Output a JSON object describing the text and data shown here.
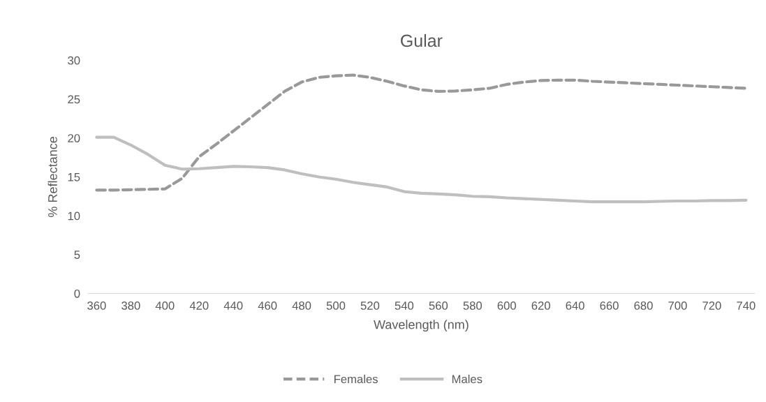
{
  "chart_data": {
    "type": "line",
    "title": "Gular",
    "xlabel": "Wavelength (nm)",
    "ylabel": "% Reflectance",
    "x": [
      360,
      370,
      380,
      390,
      400,
      410,
      420,
      430,
      440,
      450,
      460,
      470,
      480,
      490,
      500,
      510,
      520,
      530,
      540,
      550,
      560,
      570,
      580,
      590,
      600,
      610,
      620,
      630,
      640,
      650,
      660,
      670,
      680,
      690,
      700,
      710,
      720,
      730,
      740
    ],
    "xlim": [
      355,
      745
    ],
    "xticks": [
      360,
      380,
      400,
      420,
      440,
      460,
      480,
      500,
      520,
      540,
      560,
      580,
      600,
      620,
      640,
      660,
      680,
      700,
      720,
      740
    ],
    "ylim": [
      0,
      30
    ],
    "yticks": [
      0,
      5,
      10,
      15,
      20,
      25,
      30
    ],
    "grid": false,
    "legend": "bottom",
    "marker": "none",
    "series": [
      {
        "name": "Females",
        "color": "#999999",
        "line_style": "dashed",
        "values": [
          13.3,
          13.3,
          13.35,
          13.4,
          13.45,
          14.8,
          17.6,
          19.2,
          20.9,
          22.6,
          24.3,
          26.0,
          27.2,
          27.8,
          28.0,
          28.1,
          27.8,
          27.3,
          26.7,
          26.2,
          26.0,
          26.05,
          26.2,
          26.4,
          26.9,
          27.2,
          27.4,
          27.45,
          27.45,
          27.3,
          27.2,
          27.1,
          27.0,
          26.9,
          26.8,
          26.7,
          26.6,
          26.5,
          26.4
        ]
      },
      {
        "name": "Males",
        "color": "#bfbfbf",
        "line_style": "solid",
        "values": [
          20.1,
          20.1,
          19.1,
          17.9,
          16.5,
          16.0,
          16.05,
          16.2,
          16.35,
          16.3,
          16.2,
          15.9,
          15.4,
          15.0,
          14.7,
          14.3,
          14.0,
          13.7,
          13.1,
          12.9,
          12.8,
          12.7,
          12.5,
          12.45,
          12.3,
          12.2,
          12.1,
          12.0,
          11.9,
          11.8,
          11.8,
          11.8,
          11.8,
          11.85,
          11.9,
          11.9,
          11.95,
          11.95,
          12.0
        ]
      }
    ]
  }
}
